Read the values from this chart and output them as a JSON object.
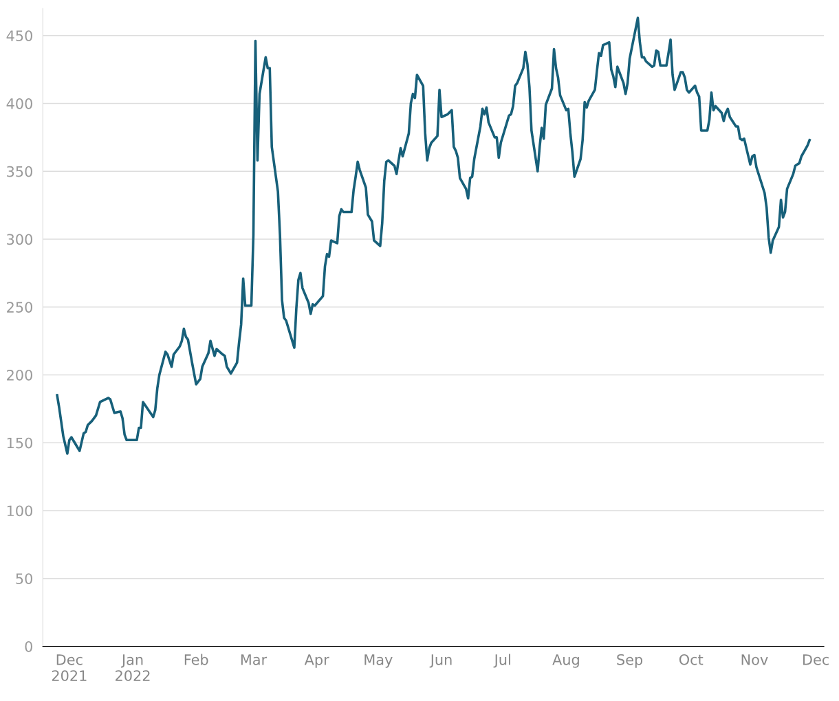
{
  "chart_data": {
    "type": "line",
    "color": "#17607a",
    "line_style": "solid",
    "marker": "none",
    "grid": "y",
    "legend": false,
    "xlim": [
      "2021-11-18",
      "2022-12-05"
    ],
    "ylim": [
      0,
      470
    ],
    "yticks": [
      0,
      50,
      100,
      150,
      200,
      250,
      300,
      350,
      400,
      450
    ],
    "xticks": [
      {
        "value": "2021-12-01",
        "label": "Dec\n2021"
      },
      {
        "value": "2022-01-01",
        "label": "Jan\n2022"
      },
      {
        "value": "2022-02-01",
        "label": "Feb"
      },
      {
        "value": "2022-03-01",
        "label": "Mar"
      },
      {
        "value": "2022-04-01",
        "label": "Apr"
      },
      {
        "value": "2022-05-01",
        "label": "May"
      },
      {
        "value": "2022-06-01",
        "label": "Jun"
      },
      {
        "value": "2022-07-01",
        "label": "Jul"
      },
      {
        "value": "2022-08-01",
        "label": "Aug"
      },
      {
        "value": "2022-09-01",
        "label": "Sep"
      },
      {
        "value": "2022-10-01",
        "label": "Oct"
      },
      {
        "value": "2022-11-01",
        "label": "Nov"
      },
      {
        "value": "2022-12-01",
        "label": "Dec"
      }
    ],
    "x": [
      "2021-11-25",
      "2021-11-26",
      "2021-11-28",
      "2021-11-30",
      "2021-12-01",
      "2021-12-02",
      "2021-12-06",
      "2021-12-08",
      "2021-12-09",
      "2021-12-10",
      "2021-12-12",
      "2021-12-14",
      "2021-12-16",
      "2021-12-20",
      "2021-12-21",
      "2021-12-23",
      "2021-12-26",
      "2021-12-27",
      "2021-12-28",
      "2021-12-29",
      "2022-01-03",
      "2022-01-04",
      "2022-01-05",
      "2022-01-06",
      "2022-01-11",
      "2022-01-12",
      "2022-01-13",
      "2022-01-14",
      "2022-01-17",
      "2022-01-18",
      "2022-01-20",
      "2022-01-21",
      "2022-01-24",
      "2022-01-25",
      "2022-01-26",
      "2022-01-27",
      "2022-01-28",
      "2022-01-30",
      "2022-02-01",
      "2022-02-03",
      "2022-02-04",
      "2022-02-07",
      "2022-02-08",
      "2022-02-10",
      "2022-02-11",
      "2022-02-14",
      "2022-02-15",
      "2022-02-16",
      "2022-02-18",
      "2022-02-21",
      "2022-02-22",
      "2022-02-23",
      "2022-02-24",
      "2022-02-25",
      "2022-02-28",
      "2022-03-01",
      "2022-03-02",
      "2022-03-03",
      "2022-03-04",
      "2022-03-07",
      "2022-03-08",
      "2022-03-09",
      "2022-03-10",
      "2022-03-13",
      "2022-03-14",
      "2022-03-15",
      "2022-03-16",
      "2022-03-17",
      "2022-03-21",
      "2022-03-22",
      "2022-03-23",
      "2022-03-24",
      "2022-03-25",
      "2022-03-28",
      "2022-03-29",
      "2022-03-30",
      "2022-03-31",
      "2022-04-04",
      "2022-04-05",
      "2022-04-06",
      "2022-04-07",
      "2022-04-08",
      "2022-04-11",
      "2022-04-12",
      "2022-04-13",
      "2022-04-14",
      "2022-04-18",
      "2022-04-19",
      "2022-04-20",
      "2022-04-21",
      "2022-04-22",
      "2022-04-25",
      "2022-04-26",
      "2022-04-28",
      "2022-04-29",
      "2022-05-02",
      "2022-05-03",
      "2022-05-04",
      "2022-05-05",
      "2022-05-06",
      "2022-05-09",
      "2022-05-10",
      "2022-05-11",
      "2022-05-12",
      "2022-05-13",
      "2022-05-16",
      "2022-05-17",
      "2022-05-18",
      "2022-05-19",
      "2022-05-20",
      "2022-05-23",
      "2022-05-24",
      "2022-05-25",
      "2022-05-26",
      "2022-05-27",
      "2022-05-30",
      "2022-05-31",
      "2022-06-01",
      "2022-06-04",
      "2022-06-06",
      "2022-06-07",
      "2022-06-08",
      "2022-06-09",
      "2022-06-10",
      "2022-06-13",
      "2022-06-14",
      "2022-06-15",
      "2022-06-16",
      "2022-06-17",
      "2022-06-20",
      "2022-06-21",
      "2022-06-22",
      "2022-06-23",
      "2022-06-24",
      "2022-06-27",
      "2022-06-28",
      "2022-06-29",
      "2022-06-30",
      "2022-07-04",
      "2022-07-05",
      "2022-07-06",
      "2022-07-07",
      "2022-07-08",
      "2022-07-11",
      "2022-07-12",
      "2022-07-13",
      "2022-07-14",
      "2022-07-15",
      "2022-07-18",
      "2022-07-19",
      "2022-07-20",
      "2022-07-21",
      "2022-07-22",
      "2022-07-25",
      "2022-07-26",
      "2022-07-27",
      "2022-07-28",
      "2022-07-29",
      "2022-08-01",
      "2022-08-02",
      "2022-08-03",
      "2022-08-04",
      "2022-08-05",
      "2022-08-08",
      "2022-08-09",
      "2022-08-10",
      "2022-08-11",
      "2022-08-12",
      "2022-08-15",
      "2022-08-16",
      "2022-08-17",
      "2022-08-18",
      "2022-08-19",
      "2022-08-22",
      "2022-08-23",
      "2022-08-24",
      "2022-08-25",
      "2022-08-26",
      "2022-08-29",
      "2022-08-30",
      "2022-08-31",
      "2022-09-01",
      "2022-09-05",
      "2022-09-06",
      "2022-09-07",
      "2022-09-08",
      "2022-09-09",
      "2022-09-12",
      "2022-09-13",
      "2022-09-14",
      "2022-09-15",
      "2022-09-16",
      "2022-09-19",
      "2022-09-20",
      "2022-09-21",
      "2022-09-22",
      "2022-09-23",
      "2022-09-26",
      "2022-09-27",
      "2022-09-28",
      "2022-09-29",
      "2022-09-30",
      "2022-10-03",
      "2022-10-04",
      "2022-10-05",
      "2022-10-06",
      "2022-10-09",
      "2022-10-10",
      "2022-10-11",
      "2022-10-12",
      "2022-10-13",
      "2022-10-16",
      "2022-10-17",
      "2022-10-18",
      "2022-10-19",
      "2022-10-20",
      "2022-10-23",
      "2022-10-24",
      "2022-10-25",
      "2022-10-26",
      "2022-10-27",
      "2022-10-30",
      "2022-10-31",
      "2022-11-01",
      "2022-11-02",
      "2022-11-06",
      "2022-11-07",
      "2022-11-08",
      "2022-11-09",
      "2022-11-10",
      "2022-11-13",
      "2022-11-14",
      "2022-11-15",
      "2022-11-16",
      "2022-11-17",
      "2022-11-20",
      "2022-11-21",
      "2022-11-22",
      "2022-11-23",
      "2022-11-24",
      "2022-11-27",
      "2022-11-28"
    ],
    "values": [
      185,
      176,
      155,
      142,
      152,
      154,
      144,
      157,
      158,
      163,
      166,
      170,
      180,
      183,
      182,
      172,
      173,
      168,
      156,
      152,
      152,
      161,
      161,
      180,
      169,
      174,
      190,
      200,
      217,
      215,
      206,
      215,
      221,
      225,
      234,
      228,
      226,
      209,
      193,
      197,
      206,
      216,
      225,
      214,
      219,
      215,
      214,
      206,
      201,
      209,
      224,
      237,
      271,
      251,
      251,
      303,
      446,
      358,
      407,
      434,
      426,
      426,
      368,
      335,
      303,
      255,
      242,
      240,
      220,
      249,
      270,
      275,
      264,
      253,
      245,
      252,
      251,
      258,
      280,
      289,
      287,
      299,
      297,
      317,
      322,
      320,
      320,
      336,
      346,
      357,
      351,
      338,
      318,
      313,
      299,
      295,
      312,
      343,
      357,
      358,
      354,
      348,
      358,
      367,
      361,
      378,
      400,
      407,
      404,
      421,
      413,
      378,
      358,
      367,
      371,
      376,
      410,
      390,
      392,
      395,
      368,
      365,
      360,
      345,
      337,
      330,
      345,
      346,
      359,
      383,
      396,
      392,
      397,
      386,
      375,
      375,
      360,
      371,
      391,
      392,
      398,
      413,
      415,
      426,
      438,
      429,
      412,
      380,
      350,
      368,
      382,
      374,
      399,
      411,
      440,
      426,
      419,
      406,
      395,
      396,
      378,
      364,
      346,
      359,
      373,
      401,
      397,
      402,
      410,
      424,
      437,
      435,
      443,
      445,
      425,
      420,
      412,
      427,
      415,
      407,
      415,
      433,
      463,
      445,
      434,
      434,
      431,
      427,
      428,
      439,
      438,
      428,
      428,
      437,
      447,
      421,
      410,
      423,
      423,
      419,
      410,
      408,
      413,
      408,
      405,
      380,
      380,
      388,
      408,
      395,
      398,
      393,
      387,
      393,
      396,
      390,
      383,
      383,
      374,
      373,
      374,
      355,
      361,
      362,
      353,
      334,
      323,
      301,
      290,
      299,
      309,
      329,
      316,
      320,
      337,
      348,
      354,
      355,
      356,
      361,
      369,
      373
    ]
  }
}
